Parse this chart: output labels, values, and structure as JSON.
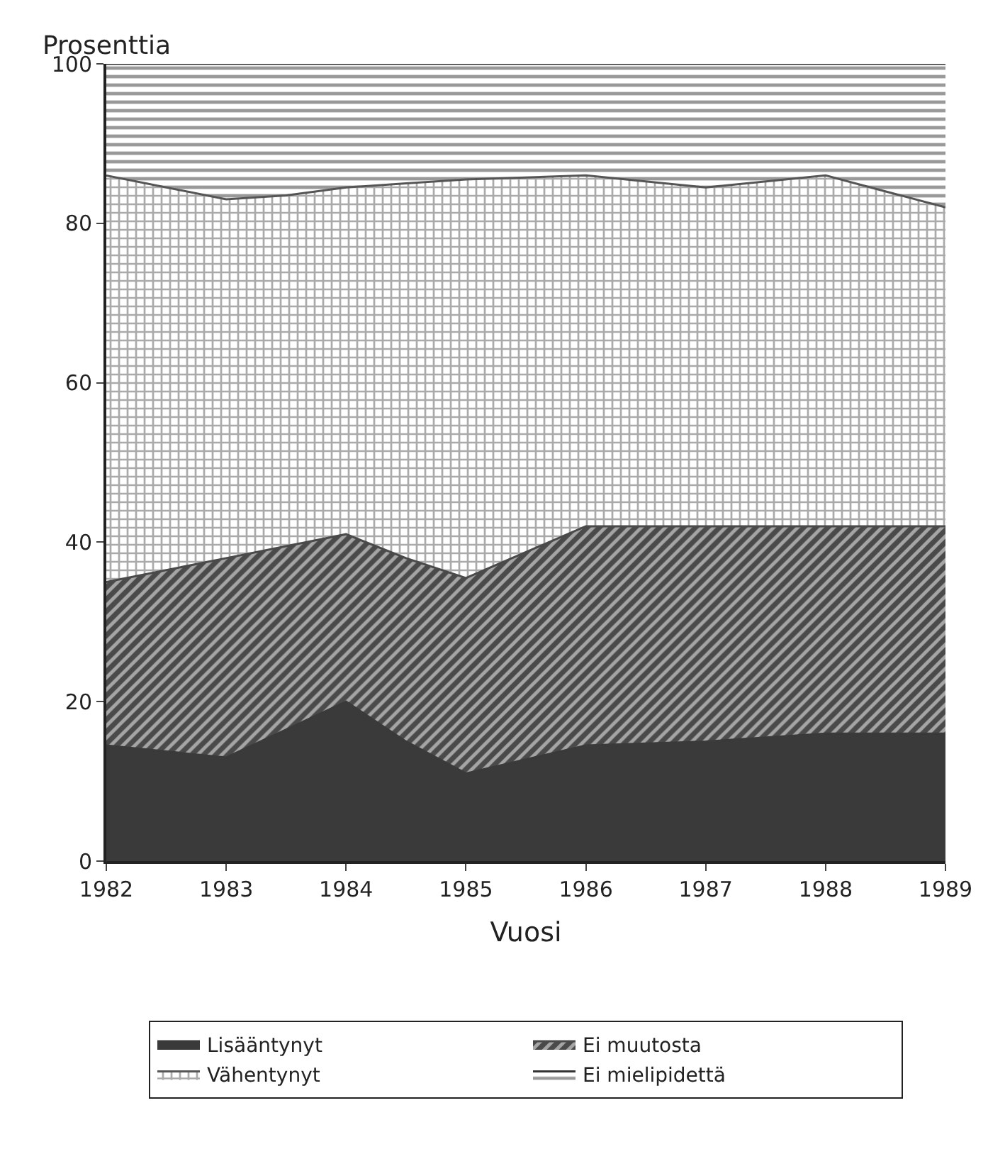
{
  "chart_data": {
    "type": "area",
    "stacked": true,
    "ylabel": "Prosenttia",
    "xlabel": "Vuosi",
    "x": [
      1982,
      1983,
      1983.5,
      1984,
      1984.5,
      1985,
      1986,
      1987,
      1988,
      1989
    ],
    "series": [
      {
        "name": "Lisääntynyt",
        "color": "#3a3a3a",
        "values": [
          14.5,
          13,
          16.5,
          20,
          15,
          11,
          14.5,
          15,
          16,
          16
        ]
      },
      {
        "name": "Ei muutosta",
        "color": "#4a4a4a",
        "values": [
          20.5,
          25,
          23,
          21,
          23,
          24.5,
          27.5,
          27,
          26,
          26
        ]
      },
      {
        "name": "Vähentynyt",
        "color": "#555555",
        "values": [
          51,
          45,
          44,
          43.5,
          47,
          50,
          44,
          42.5,
          44,
          40
        ]
      },
      {
        "name": "Ei mielipidettä",
        "color": "#333333",
        "values": [
          14,
          17,
          16.5,
          15.5,
          15,
          14.5,
          14,
          15.5,
          14,
          18
        ]
      }
    ],
    "xlim": [
      1982,
      1989
    ],
    "xticks": [
      1982,
      1983,
      1984,
      1985,
      1986,
      1987,
      1988,
      1989
    ],
    "ylim": [
      0,
      100
    ],
    "yticks": [
      0,
      20,
      40,
      60,
      80,
      100
    ],
    "legend": "bottom"
  }
}
